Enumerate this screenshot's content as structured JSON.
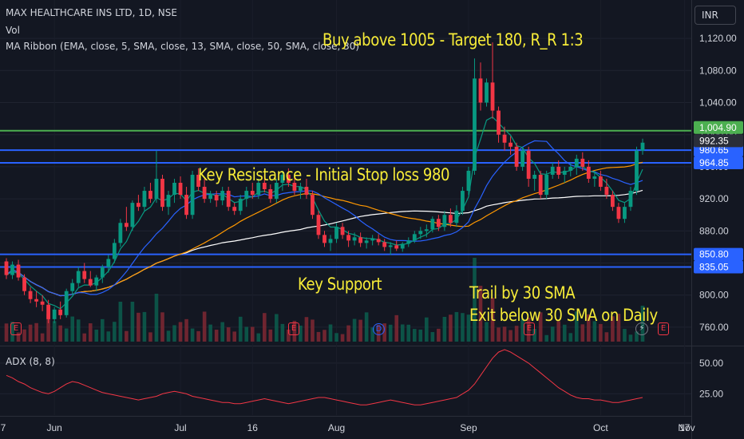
{
  "header": {
    "title": "MAX HEALTHCARE INS LTD, 1D, NSE",
    "vol_label": "Vol",
    "ma_label": "MA Ribbon (EMA, close, 5, SMA, close, 13, SMA, close, 50, SMA, close, 30)",
    "currency": "INR"
  },
  "annotations": {
    "buy": "Buy above 1005 - Target 180, R_R 1:3",
    "resistance": "Key Resistance - Initial Stop loss 980",
    "support": "Key Support",
    "trail_line1": "Trail by 30 SMA",
    "trail_line2": "Exit below 30 SMA on Daily"
  },
  "events": {
    "earnings": "E",
    "dividend": "D",
    "flash": "⚡"
  },
  "chart_data": [
    {
      "type": "candlestick",
      "title": "MAX HEALTHCARE INS LTD, 1D, NSE",
      "x_tick_labels": [
        "7",
        "Jun",
        "Jul",
        "16",
        "Aug",
        "Sep",
        "Oct",
        "17",
        "Nov"
      ],
      "y_tick_labels": [
        "1,120.00",
        "1,080.00",
        "1,040.00",
        "1,000.00",
        "960.00",
        "920.00",
        "880.00",
        "840.00",
        "800.00",
        "760.00"
      ],
      "y_ticks": [
        1120,
        1080,
        1040,
        1000,
        960,
        920,
        880,
        840,
        800,
        760
      ],
      "ylim": [
        742,
        1140
      ],
      "candles_ohlc": [
        [
          842,
          846,
          820,
          825
        ],
        [
          825,
          842,
          820,
          838
        ],
        [
          838,
          844,
          818,
          822
        ],
        [
          822,
          826,
          800,
          805
        ],
        [
          805,
          810,
          790,
          795
        ],
        [
          795,
          805,
          785,
          792
        ],
        [
          792,
          800,
          780,
          788
        ],
        [
          788,
          794,
          765,
          770
        ],
        [
          770,
          785,
          765,
          782
        ],
        [
          782,
          792,
          770,
          775
        ],
        [
          775,
          808,
          772,
          805
        ],
        [
          805,
          820,
          800,
          815
        ],
        [
          815,
          835,
          810,
          830
        ],
        [
          830,
          840,
          815,
          820
        ],
        [
          820,
          830,
          810,
          812
        ],
        [
          812,
          825,
          805,
          822
        ],
        [
          822,
          838,
          815,
          835
        ],
        [
          835,
          850,
          828,
          845
        ],
        [
          845,
          870,
          840,
          865
        ],
        [
          865,
          895,
          860,
          890
        ],
        [
          890,
          910,
          880,
          885
        ],
        [
          885,
          918,
          880,
          915
        ],
        [
          915,
          925,
          905,
          910
        ],
        [
          910,
          935,
          905,
          930
        ],
        [
          930,
          940,
          915,
          920
        ],
        [
          920,
          980,
          915,
          945
        ],
        [
          945,
          950,
          905,
          910
        ],
        [
          910,
          930,
          900,
          925
        ],
        [
          925,
          945,
          915,
          940
        ],
        [
          940,
          948,
          920,
          925
        ],
        [
          925,
          935,
          895,
          900
        ],
        [
          900,
          955,
          895,
          950
        ],
        [
          950,
          958,
          930,
          935
        ],
        [
          935,
          945,
          915,
          920
        ],
        [
          920,
          930,
          915,
          925
        ],
        [
          925,
          930,
          910,
          918
        ],
        [
          918,
          935,
          912,
          930
        ],
        [
          930,
          935,
          905,
          910
        ],
        [
          910,
          915,
          900,
          905
        ],
        [
          905,
          925,
          900,
          920
        ],
        [
          920,
          935,
          910,
          930
        ],
        [
          930,
          940,
          920,
          925
        ],
        [
          925,
          945,
          920,
          940
        ],
        [
          940,
          950,
          928,
          932
        ],
        [
          932,
          938,
          915,
          920
        ],
        [
          920,
          945,
          915,
          940
        ],
        [
          940,
          955,
          930,
          950
        ],
        [
          950,
          958,
          935,
          940
        ],
        [
          940,
          950,
          925,
          930
        ],
        [
          930,
          940,
          920,
          935
        ],
        [
          935,
          945,
          920,
          925
        ],
        [
          925,
          930,
          895,
          900
        ],
        [
          900,
          905,
          870,
          875
        ],
        [
          875,
          880,
          860,
          865
        ],
        [
          865,
          875,
          855,
          870
        ],
        [
          870,
          890,
          865,
          885
        ],
        [
          885,
          890,
          870,
          875
        ],
        [
          875,
          880,
          860,
          868
        ],
        [
          868,
          878,
          862,
          872
        ],
        [
          872,
          878,
          860,
          865
        ],
        [
          865,
          872,
          858,
          868
        ],
        [
          868,
          875,
          862,
          870
        ],
        [
          870,
          876,
          862,
          866
        ],
        [
          866,
          870,
          855,
          860
        ],
        [
          860,
          866,
          850,
          862
        ],
        [
          862,
          868,
          855,
          858
        ],
        [
          858,
          866,
          854,
          864
        ],
        [
          864,
          872,
          860,
          868
        ],
        [
          868,
          880,
          865,
          876
        ],
        [
          876,
          885,
          870,
          880
        ],
        [
          880,
          888,
          872,
          882
        ],
        [
          882,
          898,
          878,
          895
        ],
        [
          895,
          900,
          880,
          885
        ],
        [
          885,
          905,
          880,
          900
        ],
        [
          900,
          908,
          885,
          890
        ],
        [
          890,
          912,
          885,
          905
        ],
        [
          905,
          935,
          900,
          930
        ],
        [
          930,
          960,
          925,
          955
        ],
        [
          955,
          1095,
          950,
          1070
        ],
        [
          1070,
          1090,
          1030,
          1040
        ],
        [
          1040,
          1070,
          1035,
          1065
        ],
        [
          1065,
          1115,
          1020,
          1030
        ],
        [
          1030,
          1035,
          990,
          1000
        ],
        [
          1000,
          1010,
          980,
          990
        ],
        [
          990,
          998,
          975,
          985
        ],
        [
          985,
          990,
          955,
          960
        ],
        [
          960,
          985,
          955,
          980
        ],
        [
          980,
          985,
          935,
          945
        ],
        [
          945,
          955,
          930,
          950
        ],
        [
          950,
          955,
          920,
          925
        ],
        [
          925,
          955,
          920,
          950
        ],
        [
          950,
          965,
          945,
          960
        ],
        [
          960,
          968,
          945,
          950
        ],
        [
          950,
          960,
          940,
          955
        ],
        [
          955,
          965,
          948,
          960
        ],
        [
          960,
          975,
          950,
          970
        ],
        [
          970,
          978,
          955,
          960
        ],
        [
          960,
          968,
          940,
          945
        ],
        [
          945,
          955,
          935,
          948
        ],
        [
          948,
          955,
          930,
          935
        ],
        [
          935,
          945,
          920,
          925
        ],
        [
          925,
          930,
          905,
          910
        ],
        [
          910,
          915,
          890,
          895
        ],
        [
          895,
          915,
          890,
          910
        ],
        [
          910,
          935,
          905,
          930
        ],
        [
          930,
          985,
          925,
          980
        ],
        [
          980,
          995,
          975,
          990
        ]
      ]
    },
    {
      "type": "line",
      "title": "ADX (8, 8)",
      "y_tick_labels": [
        "50.00",
        "25.00"
      ],
      "y_ticks": [
        50,
        25
      ],
      "ylim": [
        9,
        61
      ],
      "values": [
        40,
        38,
        35,
        33,
        30,
        28,
        26,
        25,
        27,
        30,
        33,
        35,
        34,
        32,
        30,
        28,
        26,
        25,
        24,
        23,
        22,
        21,
        20,
        21,
        22,
        23,
        25,
        26,
        27,
        26,
        25,
        23,
        22,
        21,
        20,
        19,
        18,
        18,
        17,
        17,
        18,
        19,
        20,
        21,
        20,
        19,
        18,
        17,
        18,
        19,
        20,
        21,
        22,
        22,
        21,
        20,
        19,
        18,
        17,
        16,
        16,
        17,
        18,
        19,
        20,
        19,
        18,
        17,
        16,
        16,
        17,
        18,
        19,
        20,
        21,
        22,
        25,
        28,
        33,
        40,
        47,
        54,
        59,
        61,
        59,
        56,
        53,
        50,
        46,
        42,
        38,
        34,
        30,
        27,
        24,
        22,
        21,
        21,
        20,
        20,
        19,
        18,
        18,
        19,
        20,
        21,
        22
      ]
    }
  ],
  "levels": [
    {
      "name": "target-line",
      "value": 1004.9,
      "label": "1,004.90",
      "color": "#4caf50"
    },
    {
      "name": "resistance-line-upper",
      "value": 980.65,
      "label": "980.65",
      "color": "#2962ff"
    },
    {
      "name": "resistance-line-lower",
      "value": 964.85,
      "label": "964.85",
      "color": "#2962ff"
    },
    {
      "name": "support-line-upper",
      "value": 850.8,
      "label": "850.80",
      "color": "#2962ff"
    },
    {
      "name": "support-line-lower",
      "value": 835.05,
      "label": "835.05",
      "color": "#2962ff"
    }
  ],
  "last_price": {
    "value": 992.35,
    "label": "992.35",
    "color": "#2a2e39"
  },
  "colors": {
    "up": "#089981",
    "down": "#f23645",
    "ema5": "#089981",
    "sma13": "#2962ff",
    "sma50": "#ffffff",
    "sma30": "#ff9800",
    "adx": "#f23645"
  }
}
